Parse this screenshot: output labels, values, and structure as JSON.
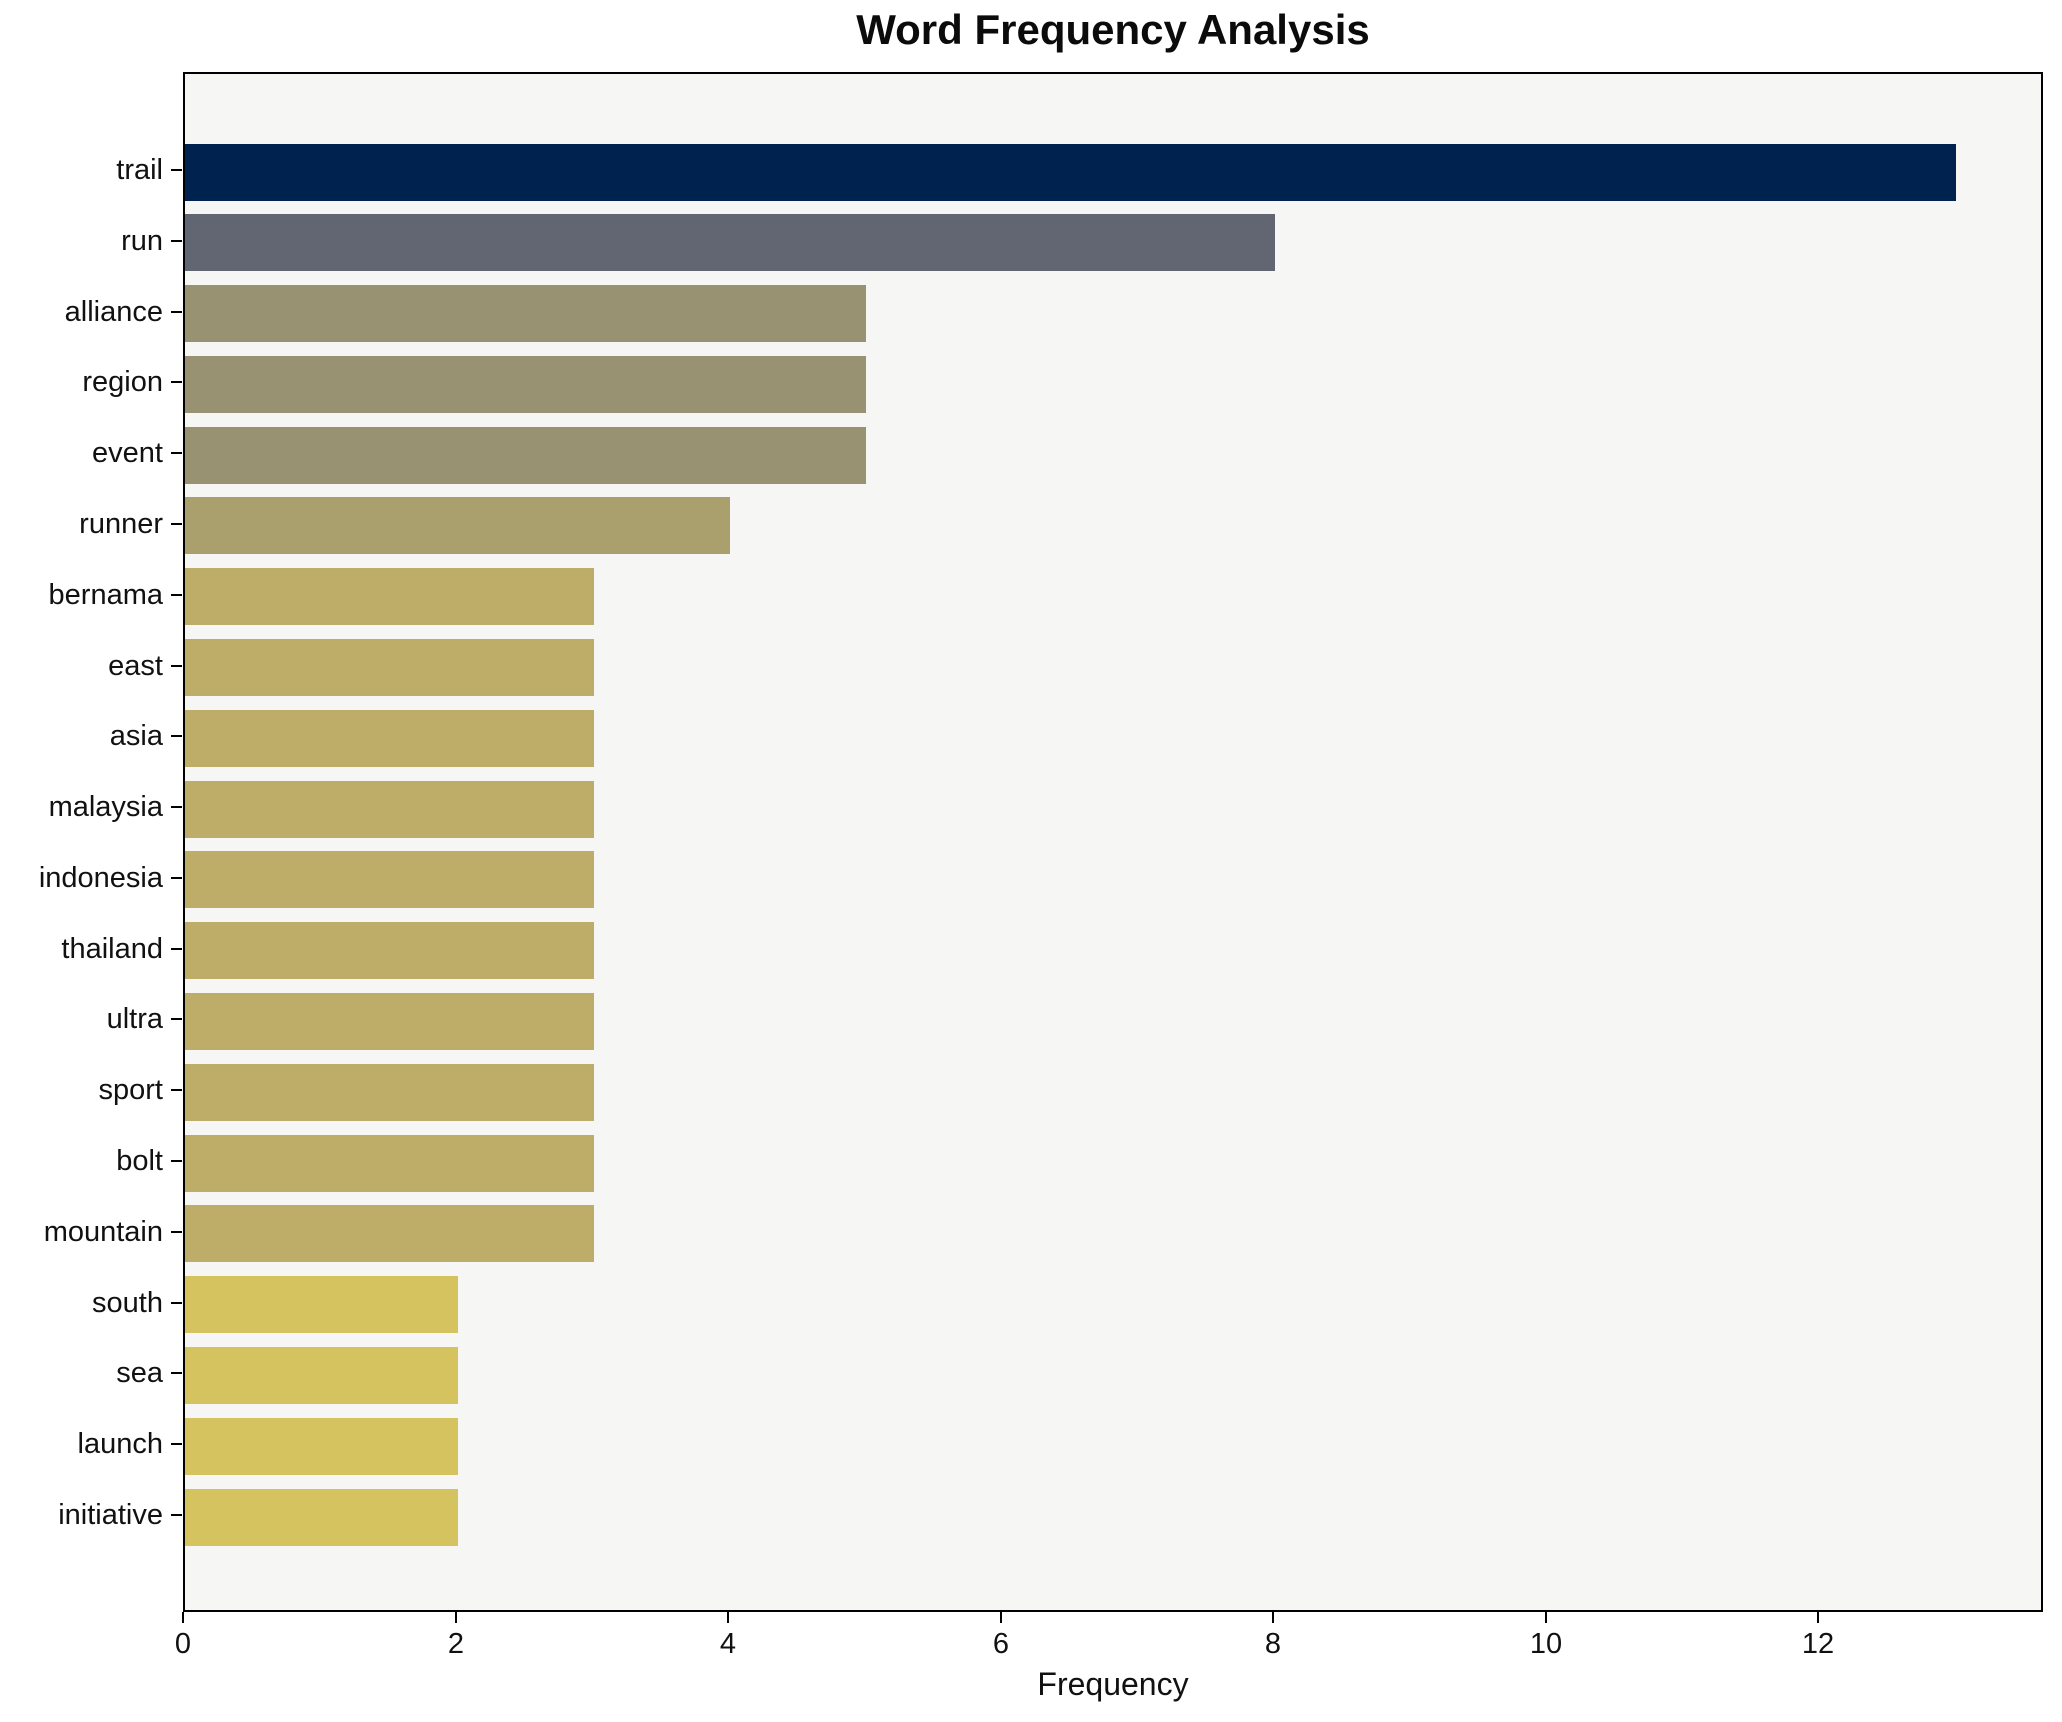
{
  "chart_data": {
    "type": "bar",
    "orientation": "horizontal",
    "title": "Word Frequency Analysis",
    "xlabel": "Frequency",
    "ylabel": "",
    "categories": [
      "trail",
      "run",
      "alliance",
      "region",
      "event",
      "runner",
      "bernama",
      "east",
      "asia",
      "malaysia",
      "indonesia",
      "thailand",
      "ultra",
      "sport",
      "bolt",
      "mountain",
      "south",
      "sea",
      "launch",
      "initiative"
    ],
    "values": [
      13,
      8,
      5,
      5,
      5,
      4,
      3,
      3,
      3,
      3,
      3,
      3,
      3,
      3,
      3,
      3,
      2,
      2,
      2,
      2
    ],
    "bar_colors": [
      "#00224e",
      "#626672",
      "#989272",
      "#989272",
      "#989272",
      "#aaa06e",
      "#bead68",
      "#bead68",
      "#bead68",
      "#bead68",
      "#bead68",
      "#bead68",
      "#bead68",
      "#bead68",
      "#bead68",
      "#bead68",
      "#d4c35e",
      "#d4c35e",
      "#d4c35e",
      "#d4c35e"
    ],
    "xlim": [
      0,
      13.65
    ],
    "xticks": [
      0,
      2,
      4,
      6,
      8,
      10,
      12
    ],
    "grid": false,
    "legend": false,
    "plot_background": "#f6f6f4",
    "spine_color": "#000000",
    "text_color": "#111111"
  }
}
